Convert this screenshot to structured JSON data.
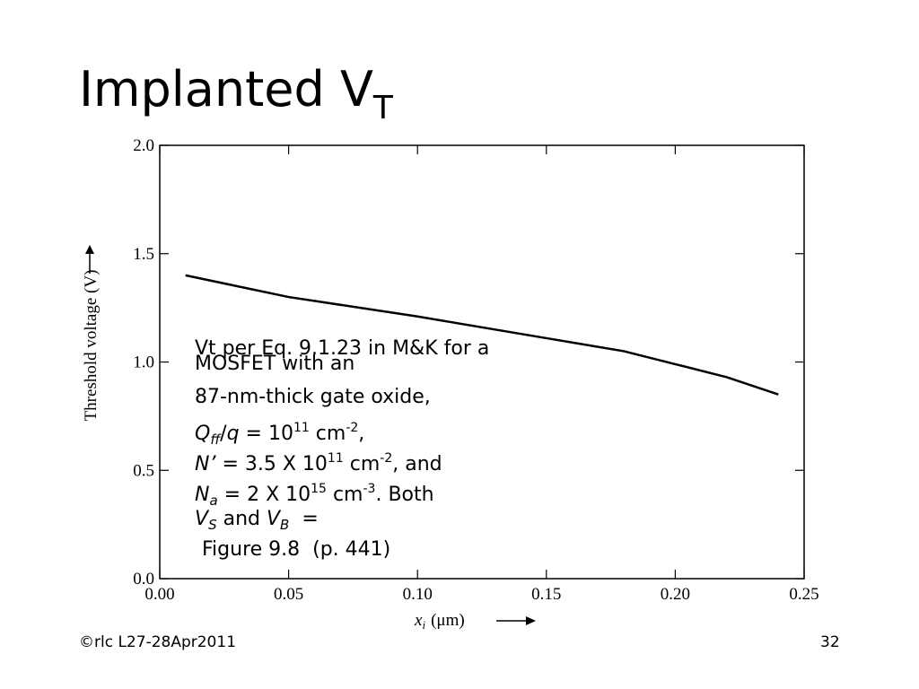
{
  "slide": {
    "title": "Implanted V",
    "title_sub": "T",
    "footer_left": "©rlc L27-28Apr2011",
    "footer_right": "32"
  },
  "chart_data": {
    "type": "line",
    "xlabel": {
      "var": "x",
      "sub": "i",
      "unit": "(μm)"
    },
    "ylabel": "Threshold voltage (V)",
    "x": [
      0.01,
      0.03,
      0.05,
      0.1,
      0.15,
      0.18,
      0.2,
      0.22,
      0.24
    ],
    "values": [
      1.4,
      1.35,
      1.3,
      1.21,
      1.11,
      1.05,
      0.99,
      0.93,
      0.85
    ],
    "color": "#000000",
    "xlim": [
      0,
      0.25
    ],
    "xticks": [
      {
        "value": 0,
        "label": "0.00"
      },
      0.05,
      {
        "value": 0.1,
        "label": "0.10"
      },
      0.15,
      {
        "value": 0.2,
        "label": "0.20"
      },
      0.25
    ],
    "ylim": [
      0,
      2
    ],
    "yticks": [
      {
        "value": 0,
        "label": "0.0"
      },
      0.5,
      {
        "value": 1,
        "label": "1.0"
      },
      1.5,
      {
        "value": 2,
        "label": "2.0"
      }
    ],
    "annotation": [
      [
        {
          "text": "Vt per Eq. 9.1.23 in M&K for a"
        }
      ],
      [
        {
          "text": "MOSFET with an"
        }
      ],
      [
        {
          "text": "87-nm-thick gate oxide,"
        }
      ],
      [
        {
          "text": "Q",
          "style": "italic"
        },
        {
          "text": "ff",
          "style": "italic-sub"
        },
        {
          "text": "/"
        },
        {
          "text": "q",
          "style": "italic"
        },
        {
          "text": " = 10"
        },
        {
          "text": "11",
          "style": "sup"
        },
        {
          "text": " cm"
        },
        {
          "text": "-2",
          "style": "sup"
        },
        {
          "text": ","
        }
      ],
      [
        {
          "text": "N’",
          "style": "italic"
        },
        {
          "text": " = 3.5 X 10"
        },
        {
          "text": "11",
          "style": "sup"
        },
        {
          "text": " cm"
        },
        {
          "text": "-2",
          "style": "sup"
        },
        {
          "text": ", and"
        }
      ],
      [
        {
          "text": "N",
          "style": "italic"
        },
        {
          "text": "a",
          "style": "italic-sub"
        },
        {
          "text": " = 2 X 10"
        },
        {
          "text": "15",
          "style": "sup"
        },
        {
          "text": " cm"
        },
        {
          "text": "-3",
          "style": "sup"
        },
        {
          "text": ". Both"
        }
      ],
      [
        {
          "text": "V",
          "style": "italic"
        },
        {
          "text": "S",
          "style": "italic-sub"
        },
        {
          "text": " and "
        },
        {
          "text": "V",
          "style": "italic"
        },
        {
          "text": "B",
          "style": "italic-sub"
        },
        {
          "text": "  ="
        }
      ],
      [
        {
          "text": "Figure 9.8  (p. 441)"
        }
      ]
    ]
  }
}
